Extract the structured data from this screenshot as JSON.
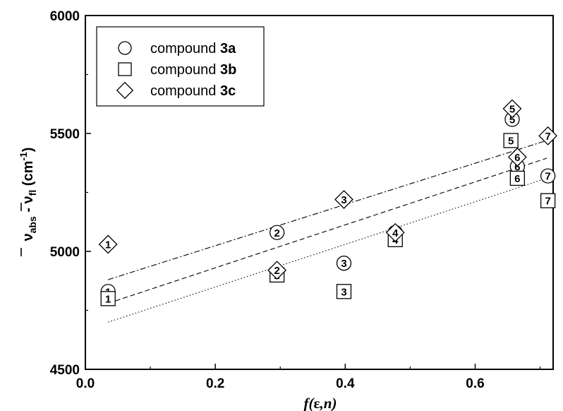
{
  "chart_data": {
    "type": "scatter",
    "xlabel": "f(ε,n)",
    "xlabel_parts": [
      "f(",
      "ε",
      ",",
      "n",
      ")"
    ],
    "ylabel_parts": [
      "ν",
      "abs",
      " - ",
      "ν",
      "fl",
      " (cm",
      "-1",
      ")"
    ],
    "xlim": [
      0.0,
      0.72
    ],
    "ylim": [
      4500,
      6000
    ],
    "x_ticks": [
      "0.0",
      "0.2",
      "0.4",
      "0.6"
    ],
    "x_tick_values": [
      0.0,
      0.2,
      0.4,
      0.6
    ],
    "y_ticks": [
      "4500",
      "5000",
      "5500",
      "6000"
    ],
    "y_tick_values": [
      4500,
      5000,
      5500,
      6000
    ],
    "legend_position": "top-left",
    "series": [
      {
        "name": "compound 3a",
        "name_parts": [
          "compound ",
          "3a"
        ],
        "marker": "circle",
        "line_style": "dashed",
        "fit": [
          [
            0.035,
            4780
          ],
          [
            0.71,
            5395
          ]
        ],
        "points": [
          {
            "x": 0.035,
            "y": 4830,
            "label": "1"
          },
          {
            "x": 0.295,
            "y": 5080,
            "label": "2"
          },
          {
            "x": 0.398,
            "y": 4950,
            "label": "3"
          },
          {
            "x": 0.477,
            "y": 5080,
            "label": "4"
          },
          {
            "x": 0.657,
            "y": 5560,
            "label": "5"
          },
          {
            "x": 0.665,
            "y": 5360,
            "label": "6"
          },
          {
            "x": 0.712,
            "y": 5320,
            "label": "7"
          }
        ]
      },
      {
        "name": "compound 3b",
        "name_parts": [
          "compound ",
          "3b"
        ],
        "marker": "square",
        "line_style": "dotted",
        "fit": [
          [
            0.035,
            4700
          ],
          [
            0.71,
            5310
          ]
        ],
        "points": [
          {
            "x": 0.035,
            "y": 4800,
            "label": "1"
          },
          {
            "x": 0.295,
            "y": 4900,
            "label": "2"
          },
          {
            "x": 0.398,
            "y": 4830,
            "label": "3"
          },
          {
            "x": 0.477,
            "y": 5050,
            "label": "4"
          },
          {
            "x": 0.655,
            "y": 5470,
            "label": "5"
          },
          {
            "x": 0.665,
            "y": 5310,
            "label": "6"
          },
          {
            "x": 0.712,
            "y": 5215,
            "label": "7"
          }
        ]
      },
      {
        "name": "compound 3c",
        "name_parts": [
          "compound ",
          "3c"
        ],
        "marker": "diamond",
        "line_style": "dashdot",
        "fit": [
          [
            0.035,
            4880
          ],
          [
            0.71,
            5470
          ]
        ],
        "points": [
          {
            "x": 0.035,
            "y": 5030,
            "label": "1"
          },
          {
            "x": 0.295,
            "y": 4920,
            "label": "2"
          },
          {
            "x": 0.398,
            "y": 5220,
            "label": "3"
          },
          {
            "x": 0.477,
            "y": 5080,
            "label": "4"
          },
          {
            "x": 0.657,
            "y": 5605,
            "label": "5"
          },
          {
            "x": 0.665,
            "y": 5400,
            "label": "6"
          },
          {
            "x": 0.712,
            "y": 5490,
            "label": "7"
          }
        ]
      }
    ]
  }
}
